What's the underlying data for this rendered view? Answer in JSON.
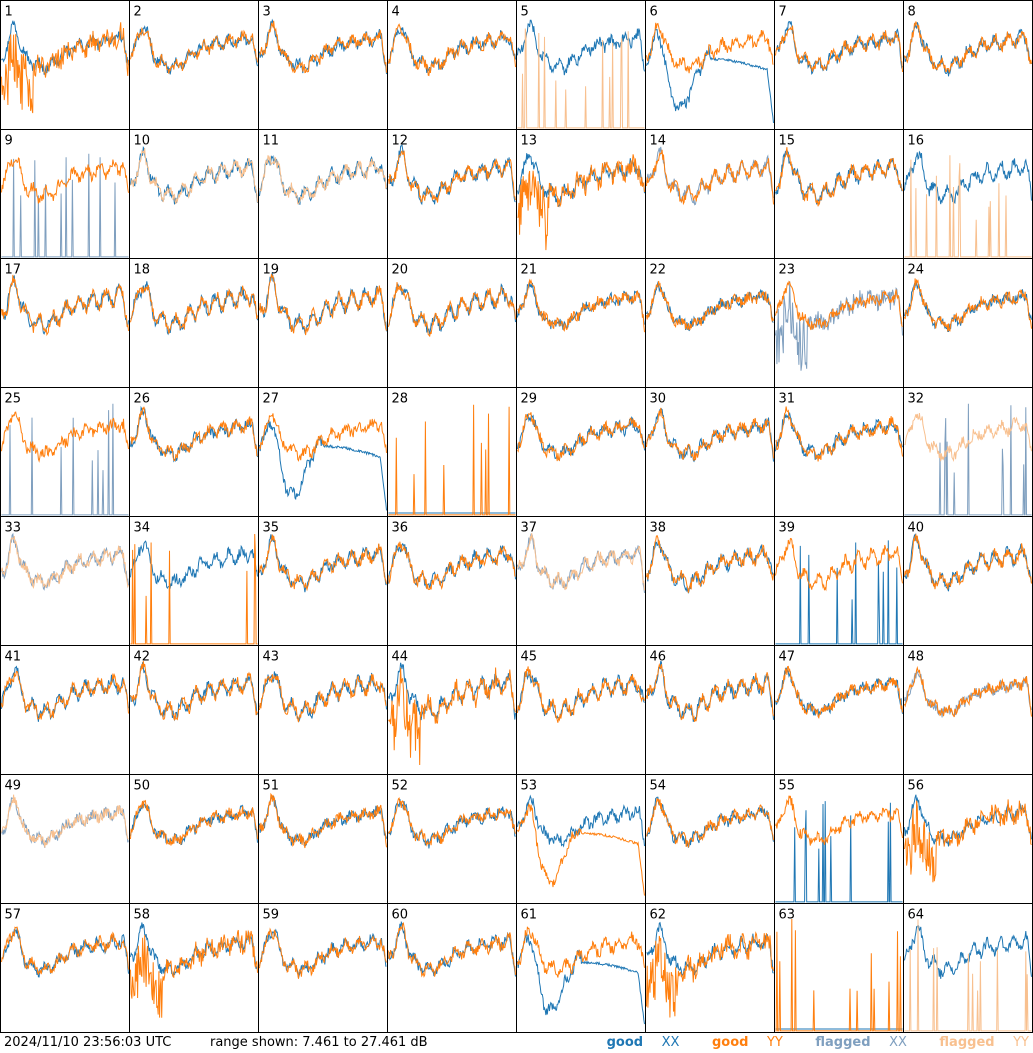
{
  "footer": {
    "timestamp": "2024/11/10 23:56:03 UTC",
    "range_text": "range shown: 7.461 to 27.461 dB"
  },
  "legend": [
    {
      "status": "good",
      "pol": "XX",
      "color": "#1f77b4"
    },
    {
      "status": "good",
      "pol": "YY",
      "color": "#ff7f0e"
    },
    {
      "status": "flagged",
      "pol": "XX",
      "color": "#7f9fbf"
    },
    {
      "status": "flagged",
      "pol": "YY",
      "color": "#f8c08f"
    }
  ],
  "chart_data": {
    "type": "line",
    "grid": {
      "rows": 8,
      "cols": 8
    },
    "ylim": [
      7.461,
      27.461
    ],
    "units": "dB",
    "panels": [
      {
        "id": "1",
        "xx": "good",
        "yy": "good",
        "xx_shape": "normal",
        "yy_shape": "noisy"
      },
      {
        "id": "2",
        "xx": "good",
        "yy": "good",
        "xx_shape": "normal",
        "yy_shape": "normal"
      },
      {
        "id": "3",
        "xx": "good",
        "yy": "good",
        "xx_shape": "normal",
        "yy_shape": "normal"
      },
      {
        "id": "4",
        "xx": "good",
        "yy": "good",
        "xx_shape": "normal",
        "yy_shape": "normal"
      },
      {
        "id": "5",
        "xx": "good",
        "yy": "flagged",
        "xx_shape": "normal",
        "yy_shape": "spikes"
      },
      {
        "id": "6",
        "xx": "good",
        "yy": "good",
        "xx_shape": "dip",
        "yy_shape": "normal"
      },
      {
        "id": "7",
        "xx": "good",
        "yy": "good",
        "xx_shape": "normal",
        "yy_shape": "normal"
      },
      {
        "id": "8",
        "xx": "good",
        "yy": "good",
        "xx_shape": "normal",
        "yy_shape": "normal"
      },
      {
        "id": "9",
        "xx": "flagged",
        "yy": "good",
        "xx_shape": "spikes",
        "yy_shape": "normal"
      },
      {
        "id": "10",
        "xx": "good",
        "yy": "flagged",
        "xx_shape": "normal",
        "yy_shape": "normal"
      },
      {
        "id": "11",
        "xx": "good",
        "yy": "flagged",
        "xx_shape": "normal",
        "yy_shape": "normal"
      },
      {
        "id": "12",
        "xx": "good",
        "yy": "good",
        "xx_shape": "normal",
        "yy_shape": "normal"
      },
      {
        "id": "13",
        "xx": "good",
        "yy": "good",
        "xx_shape": "normal",
        "yy_shape": "noisy"
      },
      {
        "id": "14",
        "xx": "flagged",
        "yy": "good",
        "xx_shape": "normal",
        "yy_shape": "normal"
      },
      {
        "id": "15",
        "xx": "good",
        "yy": "good",
        "xx_shape": "normal",
        "yy_shape": "normal"
      },
      {
        "id": "16",
        "xx": "good",
        "yy": "flagged",
        "xx_shape": "normal",
        "yy_shape": "spikes"
      },
      {
        "id": "17",
        "xx": "good",
        "yy": "good",
        "xx_shape": "normal",
        "yy_shape": "normal"
      },
      {
        "id": "18",
        "xx": "good",
        "yy": "good",
        "xx_shape": "normal",
        "yy_shape": "normal"
      },
      {
        "id": "19",
        "xx": "good",
        "yy": "good",
        "xx_shape": "normal",
        "yy_shape": "normal"
      },
      {
        "id": "20",
        "xx": "good",
        "yy": "good",
        "xx_shape": "normal",
        "yy_shape": "normal"
      },
      {
        "id": "21",
        "xx": "good",
        "yy": "good",
        "xx_shape": "normal",
        "yy_shape": "normal"
      },
      {
        "id": "22",
        "xx": "good",
        "yy": "good",
        "xx_shape": "normal",
        "yy_shape": "normal"
      },
      {
        "id": "23",
        "xx": "flagged",
        "yy": "good",
        "xx_shape": "noisy",
        "yy_shape": "normal"
      },
      {
        "id": "24",
        "xx": "good",
        "yy": "good",
        "xx_shape": "normal",
        "yy_shape": "normal"
      },
      {
        "id": "25",
        "xx": "flagged",
        "yy": "good",
        "xx_shape": "spikes",
        "yy_shape": "normal"
      },
      {
        "id": "26",
        "xx": "good",
        "yy": "good",
        "xx_shape": "normal",
        "yy_shape": "normal"
      },
      {
        "id": "27",
        "xx": "good",
        "yy": "good",
        "xx_shape": "dip",
        "yy_shape": "normal"
      },
      {
        "id": "28",
        "xx": "good",
        "yy": "good",
        "xx_shape": "flat",
        "yy_shape": "spikes"
      },
      {
        "id": "29",
        "xx": "good",
        "yy": "good",
        "xx_shape": "normal",
        "yy_shape": "normal"
      },
      {
        "id": "30",
        "xx": "good",
        "yy": "good",
        "xx_shape": "normal",
        "yy_shape": "normal"
      },
      {
        "id": "31",
        "xx": "good",
        "yy": "good",
        "xx_shape": "normal",
        "yy_shape": "normal"
      },
      {
        "id": "32",
        "xx": "flagged",
        "yy": "flagged",
        "xx_shape": "spikes",
        "yy_shape": "normal"
      },
      {
        "id": "33",
        "xx": "flagged",
        "yy": "flagged",
        "xx_shape": "normal",
        "yy_shape": "normal"
      },
      {
        "id": "34",
        "xx": "good",
        "yy": "good",
        "xx_shape": "normal",
        "yy_shape": "spikes"
      },
      {
        "id": "35",
        "xx": "good",
        "yy": "good",
        "xx_shape": "normal",
        "yy_shape": "normal"
      },
      {
        "id": "36",
        "xx": "good",
        "yy": "good",
        "xx_shape": "normal",
        "yy_shape": "normal"
      },
      {
        "id": "37",
        "xx": "flagged",
        "yy": "flagged",
        "xx_shape": "normal",
        "yy_shape": "normal"
      },
      {
        "id": "38",
        "xx": "good",
        "yy": "good",
        "xx_shape": "normal",
        "yy_shape": "normal"
      },
      {
        "id": "39",
        "xx": "good",
        "yy": "good",
        "xx_shape": "spikes",
        "yy_shape": "normal"
      },
      {
        "id": "40",
        "xx": "good",
        "yy": "good",
        "xx_shape": "normal",
        "yy_shape": "normal"
      },
      {
        "id": "41",
        "xx": "good",
        "yy": "good",
        "xx_shape": "normal",
        "yy_shape": "normal"
      },
      {
        "id": "42",
        "xx": "good",
        "yy": "good",
        "xx_shape": "normal",
        "yy_shape": "normal"
      },
      {
        "id": "43",
        "xx": "good",
        "yy": "good",
        "xx_shape": "normal",
        "yy_shape": "normal"
      },
      {
        "id": "44",
        "xx": "good",
        "yy": "good",
        "xx_shape": "normal",
        "yy_shape": "noisy"
      },
      {
        "id": "45",
        "xx": "good",
        "yy": "good",
        "xx_shape": "normal",
        "yy_shape": "normal"
      },
      {
        "id": "46",
        "xx": "good",
        "yy": "good",
        "xx_shape": "normal",
        "yy_shape": "normal"
      },
      {
        "id": "47",
        "xx": "good",
        "yy": "good",
        "xx_shape": "normal",
        "yy_shape": "normal"
      },
      {
        "id": "48",
        "xx": "flagged",
        "yy": "good",
        "xx_shape": "normal",
        "yy_shape": "normal"
      },
      {
        "id": "49",
        "xx": "flagged",
        "yy": "flagged",
        "xx_shape": "normal",
        "yy_shape": "normal"
      },
      {
        "id": "50",
        "xx": "good",
        "yy": "good",
        "xx_shape": "normal",
        "yy_shape": "normal"
      },
      {
        "id": "51",
        "xx": "good",
        "yy": "good",
        "xx_shape": "normal",
        "yy_shape": "normal"
      },
      {
        "id": "52",
        "xx": "good",
        "yy": "good",
        "xx_shape": "normal",
        "yy_shape": "normal"
      },
      {
        "id": "53",
        "xx": "good",
        "yy": "good",
        "xx_shape": "normal",
        "yy_shape": "dip"
      },
      {
        "id": "54",
        "xx": "good",
        "yy": "good",
        "xx_shape": "normal",
        "yy_shape": "normal"
      },
      {
        "id": "55",
        "xx": "good",
        "yy": "good",
        "xx_shape": "spikes",
        "yy_shape": "normal"
      },
      {
        "id": "56",
        "xx": "good",
        "yy": "good",
        "xx_shape": "normal",
        "yy_shape": "noisy"
      },
      {
        "id": "57",
        "xx": "good",
        "yy": "good",
        "xx_shape": "normal",
        "yy_shape": "normal"
      },
      {
        "id": "58",
        "xx": "good",
        "yy": "good",
        "xx_shape": "normal",
        "yy_shape": "noisy"
      },
      {
        "id": "59",
        "xx": "good",
        "yy": "good",
        "xx_shape": "normal",
        "yy_shape": "normal"
      },
      {
        "id": "60",
        "xx": "good",
        "yy": "good",
        "xx_shape": "normal",
        "yy_shape": "normal"
      },
      {
        "id": "61",
        "xx": "good",
        "yy": "good",
        "xx_shape": "dip",
        "yy_shape": "normal"
      },
      {
        "id": "62",
        "xx": "good",
        "yy": "good",
        "xx_shape": "normal",
        "yy_shape": "noisy"
      },
      {
        "id": "63",
        "xx": "good",
        "yy": "good",
        "xx_shape": "flat",
        "yy_shape": "spikes"
      },
      {
        "id": "64",
        "xx": "good",
        "yy": "flagged",
        "xx_shape": "normal",
        "yy_shape": "spikes"
      }
    ]
  }
}
